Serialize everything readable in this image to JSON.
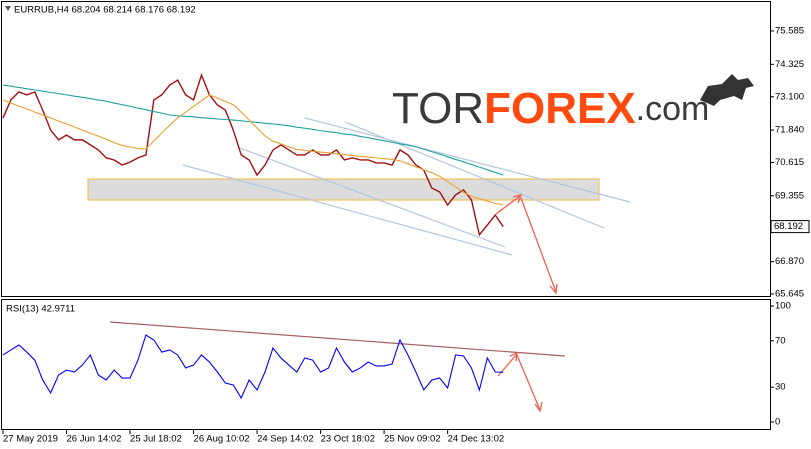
{
  "chart_data": [
    {
      "type": "line",
      "title": "EURRUB,H4 68.204 68.214 68.176 68.192",
      "logo": {
        "part1": "TOR",
        "part2": "FOREX",
        "part3": ".com"
      },
      "categories": [
        "27 May 2019",
        null,
        null,
        null,
        null,
        null,
        null,
        null,
        "26 Jun 14:02",
        null,
        null,
        null,
        null,
        null,
        null,
        null,
        "25 Jul 18:02",
        null,
        null,
        null,
        null,
        null,
        null,
        null,
        "26 Aug 10:02",
        null,
        null,
        null,
        null,
        null,
        null,
        null,
        "24 Sep 14:02",
        null,
        null,
        null,
        null,
        null,
        null,
        null,
        "23 Oct 18:02",
        null,
        null,
        null,
        null,
        null,
        null,
        null,
        "25 Nov 09:02",
        null,
        null,
        null,
        null,
        null,
        null,
        null,
        "24 Dec 13:02",
        null,
        null,
        null,
        null,
        null,
        null,
        null
      ],
      "series": [
        {
          "color": "#a01010",
          "values": [
            72.3,
            72.98,
            73.28,
            73.17,
            73.28,
            72.6,
            71.84,
            71.47,
            71.65,
            71.47,
            71.47,
            71.28,
            71.09,
            70.79,
            70.71,
            70.52,
            70.63,
            70.79,
            70.9,
            72.98,
            73.17,
            73.54,
            73.73,
            73.17,
            72.98,
            73.92,
            73.17,
            72.79,
            72.6,
            71.84,
            70.9,
            70.71,
            70.14,
            70.52,
            71.09,
            71.28,
            71.09,
            70.9,
            70.9,
            71.09,
            70.9,
            70.9,
            71.09,
            70.71,
            70.79,
            70.71,
            70.71,
            70.6,
            70.6,
            70.52,
            71.09,
            70.9,
            70.52,
            70.33,
            69.65,
            69.5,
            69.01,
            69.39,
            69.58,
            69.2,
            67.88,
            68.25,
            68.63,
            68.19
          ]
        },
        {
          "color": "#20a0a0",
          "values": [
            73.54,
            73.5,
            73.45,
            73.4,
            73.36,
            73.31,
            73.26,
            73.22,
            73.17,
            73.12,
            73.08,
            73.03,
            72.98,
            72.93,
            72.86,
            72.8,
            72.74,
            72.67,
            72.61,
            72.54,
            72.48,
            72.41,
            72.38,
            72.36,
            72.34,
            72.31,
            72.29,
            72.26,
            72.24,
            72.22,
            72.19,
            72.16,
            72.13,
            72.1,
            72.07,
            72.04,
            72.0,
            71.95,
            71.91,
            71.87,
            71.82,
            71.78,
            71.74,
            71.69,
            71.66,
            71.6,
            71.55,
            71.49,
            71.44,
            71.38,
            71.32,
            71.27,
            71.21,
            71.12,
            71.02,
            70.93,
            70.83,
            70.73,
            70.64,
            70.54,
            70.44,
            70.34,
            70.24,
            70.14
          ]
        },
        {
          "color": "#e8a030",
          "values": [
            72.98,
            72.86,
            72.75,
            72.64,
            72.52,
            72.41,
            72.3,
            72.18,
            72.07,
            71.96,
            71.84,
            71.72,
            71.61,
            71.49,
            71.37,
            71.26,
            71.2,
            71.14,
            71.13,
            71.43,
            71.73,
            72.03,
            72.3,
            72.52,
            72.74,
            72.95,
            73.17,
            73.05,
            72.92,
            72.8,
            72.52,
            72.22,
            71.92,
            71.62,
            71.42,
            71.32,
            71.21,
            71.11,
            71.07,
            71.04,
            71.01,
            70.98,
            70.94,
            70.91,
            70.88,
            70.85,
            70.82,
            70.79,
            70.76,
            70.73,
            70.68,
            70.57,
            70.45,
            70.34,
            70.23,
            70.09,
            69.89,
            69.69,
            69.49,
            69.34,
            69.25,
            69.16,
            69.07,
            69.01
          ]
        }
      ],
      "last_price": 68.192,
      "ylim": [
        65.57,
        76.68
      ],
      "yticks": [
        75.585,
        74.325,
        {
          "value": 73.1,
          "label": "73.100"
        },
        {
          "value": 71.84,
          "label": "71.840"
        },
        70.615,
        69.355,
        {
          "value": 66.87,
          "label": "66.870"
        },
        65.645
      ],
      "grid": false
    },
    {
      "type": "line",
      "title": "RSI(13) 42.9711",
      "series": [
        {
          "color": "#0000ff",
          "values": [
            57.8,
            62.1,
            66.4,
            60.3,
            53.4,
            36.2,
            25.0,
            40.5,
            44.8,
            43.1,
            49.1,
            57.8,
            40.5,
            36.2,
            44.8,
            37.9,
            37.9,
            53.4,
            75.0,
            70.7,
            60.3,
            62.1,
            57.8,
            46.6,
            49.1,
            57.8,
            51.7,
            43.1,
            33.6,
            31.9,
            20.7,
            36.2,
            27.6,
            43.1,
            63.8,
            55.2,
            49.1,
            43.1,
            55.2,
            53.4,
            43.1,
            46.6,
            63.8,
            51.7,
            43.1,
            46.6,
            51.7,
            48.3,
            48.3,
            50.0,
            70.7,
            57.8,
            43.1,
            27.6,
            36.2,
            37.9,
            29.3,
            57.8,
            56.9,
            46.6,
            27.6,
            55.2,
            43.1,
            42.97
          ]
        }
      ],
      "ylim": [
        -5.2,
        105.2
      ],
      "yticks": [
        100,
        70,
        30,
        0
      ],
      "grid": false
    }
  ]
}
